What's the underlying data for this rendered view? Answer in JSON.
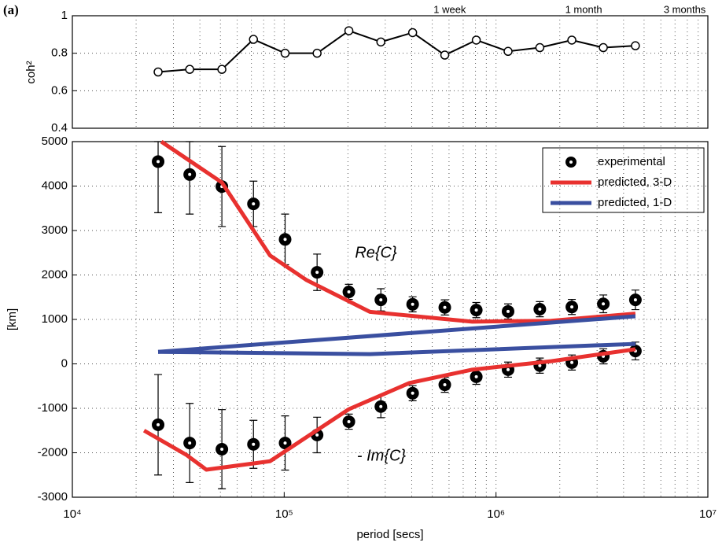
{
  "chart_data": [
    {
      "type": "line",
      "panel_label": "(a)",
      "ylabel": "coh²",
      "color": "#000000",
      "marker": "open-circle",
      "xscale": "log",
      "xlim": [
        10000,
        10000000
      ],
      "ylim": [
        0.4,
        1
      ],
      "yticks": [
        0.4,
        0.6,
        0.8,
        1
      ],
      "grid": true,
      "x": [
        25400,
        35800,
        50800,
        71600,
        101000,
        143000,
        202000,
        286000,
        404000,
        573000,
        807000,
        1140000,
        1610000,
        2280000,
        3210000,
        4550000
      ],
      "values": [
        0.7,
        0.714,
        0.714,
        0.874,
        0.8,
        0.8,
        0.92,
        0.86,
        0.91,
        0.79,
        0.87,
        0.81,
        0.83,
        0.87,
        0.83,
        0.84
      ],
      "annotations": [
        {
          "text": "1 week",
          "x": 604800
        },
        {
          "text": "1 month",
          "x": 2592000
        },
        {
          "text": "3 months",
          "x": 7776000
        }
      ]
    },
    {
      "type": "line",
      "xlabel": "period [secs]",
      "ylabel": "[km]",
      "xscale": "log",
      "xlim": [
        10000,
        10000000
      ],
      "xticks": [
        {
          "value": 10000,
          "label": "10⁴"
        },
        {
          "value": 100000,
          "label": "10⁵"
        },
        {
          "value": 1000000,
          "label": "10⁶"
        },
        {
          "value": 10000000,
          "label": "10⁷"
        }
      ],
      "ylim": [
        -3000,
        5000
      ],
      "yticks": [
        -3000,
        -2000,
        -1000,
        0,
        1000,
        2000,
        3000,
        4000,
        5000
      ],
      "grid": true,
      "legend": "upper right",
      "annotations": [
        "Re{C}",
        "- Im{C}"
      ],
      "series": [
        {
          "name": "experimental",
          "color": "#000000",
          "kind": "errorbar",
          "parts": [
            {
              "x": [
                25400,
                35800,
                50800,
                71600,
                101000,
                143000,
                202000,
                286000,
                404000,
                573000,
                807000,
                1140000,
                1610000,
                2280000,
                3210000,
                4550000
              ],
              "values": [
                4550,
                4260,
                3990,
                3600,
                2800,
                2060,
                1620,
                1440,
                1340,
                1270,
                1210,
                1180,
                1230,
                1280,
                1350,
                1440
              ],
              "errors": [
                1150,
                890,
                900,
                510,
                570,
                410,
                170,
                250,
                170,
                170,
                170,
                170,
                170,
                170,
                200,
                220
              ]
            },
            {
              "x": [
                25400,
                35800,
                50800,
                71600,
                101000,
                143000,
                202000,
                286000,
                404000,
                573000,
                807000,
                1140000,
                1610000,
                2280000,
                3210000,
                4550000
              ],
              "values": [
                -1370,
                -1780,
                -1920,
                -1810,
                -1780,
                -1600,
                -1300,
                -960,
                -660,
                -470,
                -290,
                -130,
                -40,
                30,
                170,
                290
              ],
              "errors": [
                1130,
                890,
                890,
                540,
                610,
                400,
                170,
                250,
                170,
                170,
                170,
                170,
                170,
                170,
                170,
                200
              ]
            }
          ]
        },
        {
          "name": "predicted, 3-D",
          "color": "#e8312f",
          "kind": "line",
          "parts": [
            {
              "x": [
                26300,
                50800,
                85700,
                127000,
                254000,
                773000,
                1820000,
                4550000
              ],
              "values": [
                5000,
                4080,
                2440,
                1890,
                1170,
                950,
                970,
                1130
              ]
            },
            {
              "x": [
                21800,
                34600,
                42900,
                85700,
                202000,
                390000,
                773000,
                1820000,
                4550000
              ],
              "values": [
                -1500,
                -2050,
                -2380,
                -2190,
                -1020,
                -430,
                -130,
                60,
                330
              ]
            }
          ]
        },
        {
          "name": "predicted, 1-D",
          "color": "#3a4fa0",
          "kind": "line",
          "parts": [
            {
              "x": [
                25400,
                4550000
              ],
              "values": [
                270,
                1070
              ]
            },
            {
              "x": [
                25400,
                254000,
                4550000
              ],
              "values": [
                270,
                220,
                450
              ]
            }
          ]
        }
      ]
    }
  ]
}
